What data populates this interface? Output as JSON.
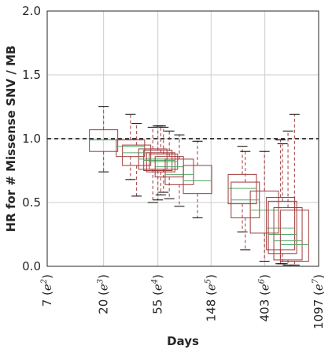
{
  "chart_data": {
    "type": "box",
    "title": "",
    "xlabel": "Days",
    "ylabel": "HR for # Missense SNV / MB",
    "xscale": "log",
    "xlim": [
      7,
      1097
    ],
    "ylim": [
      0.0,
      2.0
    ],
    "grid": true,
    "x_ticks": [
      {
        "value": 7,
        "label": "7 (e^2)"
      },
      {
        "value": 20,
        "label": "20 (e^3)"
      },
      {
        "value": 55,
        "label": "55 (e^4)"
      },
      {
        "value": 148,
        "label": "148 (e^5)"
      },
      {
        "value": 403,
        "label": "403 (e^6)"
      },
      {
        "value": 1097,
        "label": "1097 (e^7)"
      }
    ],
    "y_ticks": [
      {
        "value": 0.0,
        "label": "0.0"
      },
      {
        "value": 0.5,
        "label": "0.5"
      },
      {
        "value": 1.0,
        "label": "1.0"
      },
      {
        "value": 1.5,
        "label": "1.5"
      },
      {
        "value": 2.0,
        "label": "2.0"
      }
    ],
    "reference_line": {
      "y": 1.0,
      "style": "dashed",
      "color": "#000000"
    },
    "box_color": "#a03a3a",
    "median_color": "#55a868",
    "boxes": [
      {
        "x": 20,
        "whislo": 0.74,
        "q1": 0.9,
        "med": 0.99,
        "q3": 1.07,
        "whishi": 1.25
      },
      {
        "x": 33,
        "whislo": 0.68,
        "q1": 0.86,
        "med": 0.94,
        "q3": 0.99,
        "whishi": 1.19
      },
      {
        "x": 37,
        "whislo": 0.55,
        "q1": 0.79,
        "med": 0.89,
        "q3": 0.95,
        "whishi": 1.12
      },
      {
        "x": 50,
        "whislo": 0.5,
        "q1": 0.76,
        "med": 0.84,
        "q3": 0.92,
        "whishi": 1.09
      },
      {
        "x": 55,
        "whislo": 0.52,
        "q1": 0.75,
        "med": 0.83,
        "q3": 0.91,
        "whishi": 1.1
      },
      {
        "x": 58,
        "whislo": 0.56,
        "q1": 0.74,
        "med": 0.83,
        "q3": 0.89,
        "whishi": 1.1
      },
      {
        "x": 61,
        "whislo": 0.58,
        "q1": 0.76,
        "med": 0.82,
        "q3": 0.88,
        "whishi": 1.09
      },
      {
        "x": 68,
        "whislo": 0.53,
        "q1": 0.7,
        "med": 0.78,
        "q3": 0.86,
        "whishi": 1.06
      },
      {
        "x": 82,
        "whislo": 0.47,
        "q1": 0.64,
        "med": 0.72,
        "q3": 0.84,
        "whishi": 1.03
      },
      {
        "x": 115,
        "whislo": 0.38,
        "q1": 0.57,
        "med": 0.67,
        "q3": 0.79,
        "whishi": 0.98
      },
      {
        "x": 265,
        "whislo": 0.27,
        "q1": 0.49,
        "med": 0.61,
        "q3": 0.72,
        "whishi": 0.94
      },
      {
        "x": 280,
        "whislo": 0.13,
        "q1": 0.38,
        "med": 0.52,
        "q3": 0.66,
        "whishi": 0.9
      },
      {
        "x": 400,
        "whislo": 0.04,
        "q1": 0.26,
        "med": 0.44,
        "q3": 0.59,
        "whishi": 0.9
      },
      {
        "x": 540,
        "whislo": 0.02,
        "q1": 0.13,
        "med": 0.3,
        "q3": 0.54,
        "whishi": 0.99
      },
      {
        "x": 560,
        "whislo": 0.02,
        "q1": 0.1,
        "med": 0.25,
        "q3": 0.51,
        "whishi": 0.96
      },
      {
        "x": 620,
        "whislo": 0.01,
        "q1": 0.05,
        "med": 0.2,
        "q3": 0.46,
        "whishi": 1.06
      },
      {
        "x": 700,
        "whislo": 0.01,
        "q1": 0.04,
        "med": 0.17,
        "q3": 0.44,
        "whishi": 1.19
      }
    ]
  }
}
